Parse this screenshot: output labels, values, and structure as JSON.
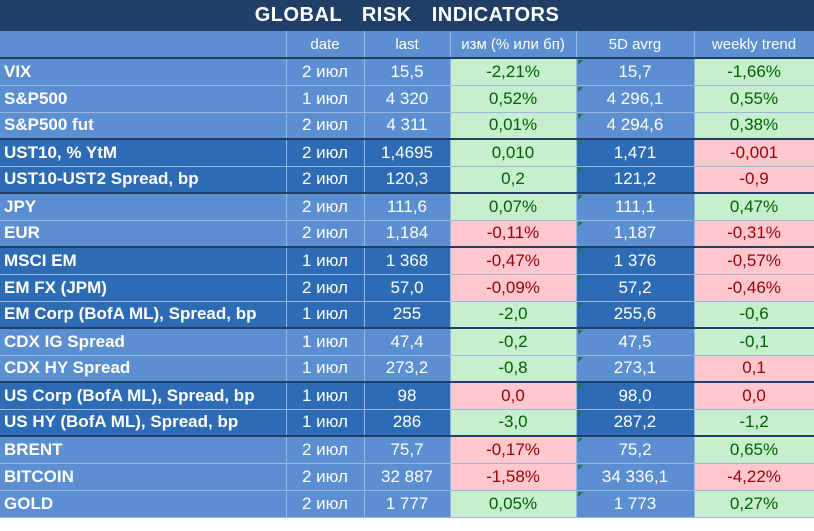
{
  "title": "GLOBAL   RISK   INDICATORS",
  "headers": [
    "",
    "date",
    "last",
    "изм (% или бп)",
    "5D avrg",
    "weekly trend"
  ],
  "groups": [
    {
      "shade": "light",
      "rows": [
        {
          "name": "VIX",
          "date": "2 июл",
          "last": "15,5",
          "chg": "-2,21%",
          "chg_dir": "pos",
          "avg": "15,7",
          "trend": "-1,66%",
          "trend_dir": "pos"
        },
        {
          "name": "S&P500",
          "date": "1 июл",
          "last": "4 320",
          "chg": "0,52%",
          "chg_dir": "pos",
          "avg": "4 296,1",
          "trend": "0,55%",
          "trend_dir": "pos"
        },
        {
          "name": "S&P500 fut",
          "date": "2 июл",
          "last": "4 311",
          "chg": "0,01%",
          "chg_dir": "pos",
          "avg": "4 294,6",
          "trend": "0,38%",
          "trend_dir": "pos"
        }
      ]
    },
    {
      "shade": "dark",
      "rows": [
        {
          "name": "UST10, % YtM",
          "date": "2 июл",
          "last": "1,4695",
          "chg": "0,010",
          "chg_dir": "pos",
          "avg": "1,471",
          "trend": "-0,001",
          "trend_dir": "neg"
        },
        {
          "name": "UST10-UST2 Spread, bp",
          "date": "2 июл",
          "last": "120,3",
          "chg": "0,2",
          "chg_dir": "pos",
          "avg": "121,2",
          "trend": "-0,9",
          "trend_dir": "neg"
        }
      ]
    },
    {
      "shade": "light",
      "rows": [
        {
          "name": "JPY",
          "date": "2 июл",
          "last": "111,6",
          "chg": "0,07%",
          "chg_dir": "pos",
          "avg": "111,1",
          "trend": "0,47%",
          "trend_dir": "pos"
        },
        {
          "name": "EUR",
          "date": "2 июл",
          "last": "1,184",
          "chg": "-0,11%",
          "chg_dir": "neg",
          "avg": "1,187",
          "trend": "-0,31%",
          "trend_dir": "neg"
        }
      ]
    },
    {
      "shade": "dark",
      "rows": [
        {
          "name": "MSCI EM",
          "date": "1 июл",
          "last": "1 368",
          "chg": "-0,47%",
          "chg_dir": "neg",
          "avg": "1 376",
          "trend": "-0,57%",
          "trend_dir": "neg"
        },
        {
          "name": "EM FX (JPM)",
          "date": "2 июл",
          "last": "57,0",
          "chg": "-0,09%",
          "chg_dir": "neg",
          "avg": "57,2",
          "trend": "-0,46%",
          "trend_dir": "neg"
        },
        {
          "name": "EM Corp (BofA ML), Spread, bp",
          "date": "1 июл",
          "last": "255",
          "chg": "-2,0",
          "chg_dir": "pos",
          "avg": "255,6",
          "trend": "-0,6",
          "trend_dir": "pos"
        }
      ]
    },
    {
      "shade": "light",
      "rows": [
        {
          "name": "CDX IG Spread",
          "date": "1 июл",
          "last": "47,4",
          "chg": "-0,2",
          "chg_dir": "pos",
          "avg": "47,5",
          "trend": "-0,1",
          "trend_dir": "pos"
        },
        {
          "name": "CDX HY Spread",
          "date": "1 июл",
          "last": "273,2",
          "chg": "-0,8",
          "chg_dir": "pos",
          "avg": "273,1",
          "trend": "0,1",
          "trend_dir": "neg"
        }
      ]
    },
    {
      "shade": "dark",
      "rows": [
        {
          "name": "US Corp (BofA ML), Spread, bp",
          "date": "1 июл",
          "last": "98",
          "chg": "0,0",
          "chg_dir": "neg",
          "avg": "98,0",
          "trend": "0,0",
          "trend_dir": "neg"
        },
        {
          "name": "US HY (BofA ML), Spread, bp",
          "date": "1 июл",
          "last": "286",
          "chg": "-3,0",
          "chg_dir": "pos",
          "avg": "287,2",
          "trend": "-1,2",
          "trend_dir": "pos"
        }
      ]
    },
    {
      "shade": "light",
      "rows": [
        {
          "name": "BRENT",
          "date": "2 июл",
          "last": "75,7",
          "chg": "-0,17%",
          "chg_dir": "neg",
          "avg": "75,2",
          "trend": "0,65%",
          "trend_dir": "pos"
        },
        {
          "name": "BITCOIN",
          "date": "2 июл",
          "last": "32 887",
          "chg": "-1,58%",
          "chg_dir": "neg",
          "avg": "34 336,1",
          "trend": "-4,22%",
          "trend_dir": "neg"
        },
        {
          "name": "GOLD",
          "date": "2 июл",
          "last": "1 777",
          "chg": "0,05%",
          "chg_dir": "pos",
          "avg": "1 773",
          "trend": "0,27%",
          "trend_dir": "pos"
        }
      ]
    }
  ],
  "colors": {
    "title_bg": "#1f3f66",
    "light_row": "#5b8fd2",
    "dark_row": "#2e6bb5",
    "positive_bg": "#c6efce",
    "positive_text": "#006100",
    "negative_bg": "#ffc7ce",
    "negative_text": "#9c0006"
  }
}
